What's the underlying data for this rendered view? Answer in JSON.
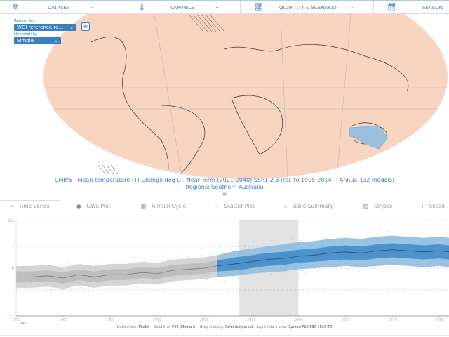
{
  "nav": [
    {
      "label": "DATASET",
      "icon": "globe-icon"
    },
    {
      "label": "VARIABLE",
      "icon": "thermometer-icon"
    },
    {
      "label": "QUANTITY & SCENARIO",
      "icon": "line-chart-icon"
    },
    {
      "label": "SEASON",
      "icon": "calendar-icon"
    }
  ],
  "controls": {
    "region_set_label": "Region Set:",
    "region_set_value": "WGI reference-re...",
    "uncertainty_label": "Uncertainty:",
    "uncertainty_value": "Simple"
  },
  "colors": {
    "accent": "#3b7fc0",
    "map_warm": "#f6c9b0",
    "region": "#9bbfdf",
    "band_dark": "#3a86c4",
    "band_light": "#8fbde0"
  },
  "caption": {
    "line1": "CMIP6 - Mean temperature (T) Change deg C - Near Term (2021-2040) SSP1-2.6 (rel. to 1995-2014) - Annual (32 models)",
    "line2": "Regions: Southern Australia",
    "menu": "≡"
  },
  "tabs": [
    {
      "label": "Time Series",
      "icon": "time-series-icon"
    },
    {
      "label": "GWL Plot",
      "icon": "globe-icon"
    },
    {
      "label": "Annual Cycle",
      "icon": "calendar-icon"
    },
    {
      "label": "Scatter Plot",
      "icon": "scatter-icon"
    },
    {
      "label": "Table Summary",
      "icon": "info-icon"
    },
    {
      "label": "Stripes",
      "icon": "stripes-icon"
    },
    {
      "label": "Seaso",
      "icon": "season-icon"
    }
  ],
  "chart_data": {
    "type": "line",
    "xlabel": "Year",
    "ylabel": "",
    "xlim": [
      1950,
      2088
    ],
    "ylim": [
      -2.2,
      2.2
    ],
    "yticks": [
      "2.2",
      "1",
      "0",
      "-1",
      "-2.2"
    ],
    "xticks": [
      "1950",
      "1965",
      "1980",
      "1995",
      "2010",
      "2025",
      "2040",
      "2055",
      "2070",
      "2085"
    ],
    "selected_period": [
      2021,
      2040
    ],
    "historical_end": 2014,
    "x": [
      1950,
      1955,
      1960,
      1965,
      1970,
      1975,
      1980,
      1985,
      1990,
      1995,
      2000,
      2005,
      2010,
      2014,
      2020,
      2025,
      2030,
      2035,
      2040,
      2045,
      2050,
      2055,
      2060,
      2065,
      2070,
      2075,
      2080,
      2085,
      2088
    ],
    "median": [
      -0.4,
      -0.4,
      -0.35,
      -0.45,
      -0.3,
      -0.4,
      -0.3,
      -0.3,
      -0.2,
      -0.25,
      -0.1,
      -0.05,
      0.0,
      0.1,
      0.2,
      0.3,
      0.4,
      0.45,
      0.55,
      0.6,
      0.7,
      0.75,
      0.7,
      0.8,
      0.85,
      0.8,
      0.75,
      0.8,
      0.75
    ],
    "p25": [
      -0.65,
      -0.65,
      -0.6,
      -0.7,
      -0.55,
      -0.65,
      -0.55,
      -0.55,
      -0.45,
      -0.5,
      -0.35,
      -0.3,
      -0.25,
      -0.15,
      -0.1,
      0.0,
      0.1,
      0.15,
      0.25,
      0.3,
      0.35,
      0.4,
      0.35,
      0.45,
      0.5,
      0.45,
      0.4,
      0.45,
      0.4
    ],
    "p75": [
      -0.15,
      -0.15,
      -0.1,
      -0.2,
      -0.05,
      -0.15,
      -0.05,
      -0.05,
      0.05,
      0.0,
      0.15,
      0.2,
      0.25,
      0.35,
      0.5,
      0.6,
      0.7,
      0.75,
      0.85,
      0.9,
      1.0,
      1.05,
      1.0,
      1.1,
      1.15,
      1.1,
      1.05,
      1.1,
      1.05
    ],
    "p10": [
      -0.9,
      -0.9,
      -0.85,
      -0.95,
      -0.8,
      -0.9,
      -0.8,
      -0.8,
      -0.7,
      -0.75,
      -0.6,
      -0.55,
      -0.5,
      -0.4,
      -0.35,
      -0.25,
      -0.2,
      -0.15,
      -0.05,
      0.0,
      0.05,
      0.1,
      0.05,
      0.1,
      0.15,
      0.1,
      0.05,
      0.1,
      0.05
    ],
    "p90": [
      0.1,
      0.1,
      0.15,
      0.05,
      0.2,
      0.1,
      0.2,
      0.2,
      0.3,
      0.25,
      0.4,
      0.45,
      0.5,
      0.6,
      0.8,
      0.9,
      1.0,
      1.1,
      1.2,
      1.25,
      1.35,
      1.4,
      1.35,
      1.45,
      1.5,
      1.45,
      1.4,
      1.45,
      1.4
    ],
    "legend": [
      {
        "label": "Dotted line:",
        "value": "Model"
      },
      {
        "label": "Solid line:",
        "value": "P50 (Median)"
      },
      {
        "label": "Grey shading:",
        "value": "Selected period"
      },
      {
        "label": "Light / dark area:",
        "value": "Spread P10-P90 / P25-75"
      }
    ]
  }
}
